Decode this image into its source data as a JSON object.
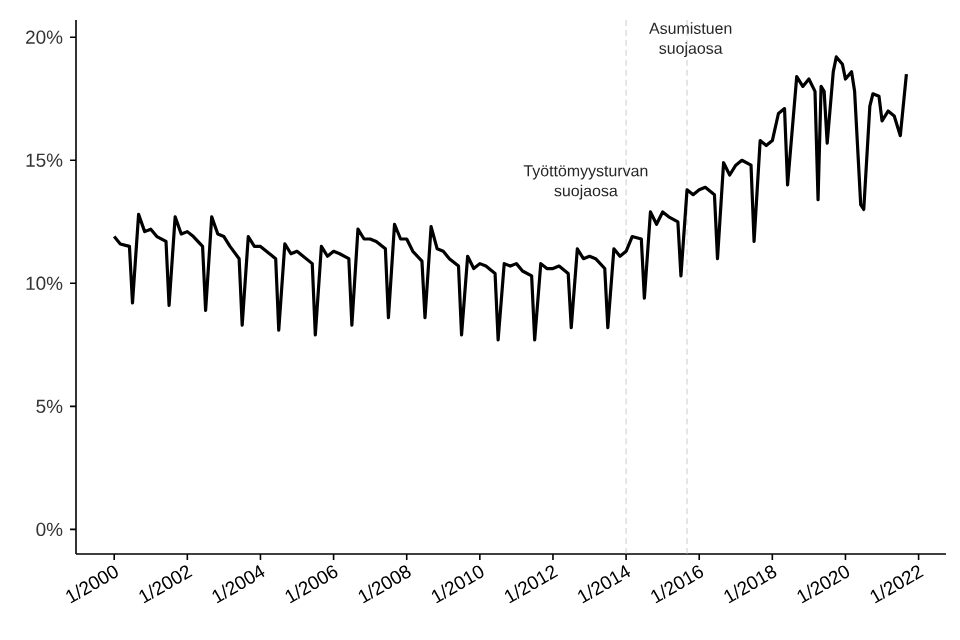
{
  "chart_data": {
    "type": "line",
    "x": [
      "2000-01",
      "2000-03",
      "2000-06",
      "2000-07",
      "2000-09",
      "2000-11",
      "2001-01",
      "2001-03",
      "2001-06",
      "2001-07",
      "2001-09",
      "2001-11",
      "2002-01",
      "2002-03",
      "2002-06",
      "2002-07",
      "2002-09",
      "2002-11",
      "2003-01",
      "2003-03",
      "2003-06",
      "2003-07",
      "2003-09",
      "2003-11",
      "2004-01",
      "2004-03",
      "2004-06",
      "2004-07",
      "2004-09",
      "2004-11",
      "2005-01",
      "2005-03",
      "2005-06",
      "2005-07",
      "2005-09",
      "2005-11",
      "2006-01",
      "2006-03",
      "2006-06",
      "2006-07",
      "2006-09",
      "2006-11",
      "2007-01",
      "2007-03",
      "2007-06",
      "2007-07",
      "2007-09",
      "2007-11",
      "2008-01",
      "2008-03",
      "2008-06",
      "2008-07",
      "2008-09",
      "2008-11",
      "2009-01",
      "2009-03",
      "2009-06",
      "2009-07",
      "2009-09",
      "2009-11",
      "2010-01",
      "2010-03",
      "2010-06",
      "2010-07",
      "2010-09",
      "2010-11",
      "2011-01",
      "2011-03",
      "2011-06",
      "2011-07",
      "2011-09",
      "2011-11",
      "2012-01",
      "2012-03",
      "2012-06",
      "2012-07",
      "2012-09",
      "2012-11",
      "2013-01",
      "2013-03",
      "2013-06",
      "2013-07",
      "2013-09",
      "2013-11",
      "2014-01",
      "2014-03",
      "2014-06",
      "2014-07",
      "2014-09",
      "2014-11",
      "2015-01",
      "2015-03",
      "2015-06",
      "2015-07",
      "2015-09",
      "2015-11",
      "2016-01",
      "2016-03",
      "2016-06",
      "2016-07",
      "2016-09",
      "2016-11",
      "2017-01",
      "2017-03",
      "2017-06",
      "2017-07",
      "2017-09",
      "2017-11",
      "2018-01",
      "2018-03",
      "2018-05",
      "2018-06",
      "2018-09",
      "2018-11",
      "2019-01",
      "2019-03",
      "2019-04",
      "2019-05",
      "2019-06",
      "2019-07",
      "2019-09",
      "2019-10",
      "2019-12",
      "2020-01",
      "2020-03",
      "2020-04",
      "2020-06",
      "2020-07",
      "2020-09",
      "2020-10",
      "2020-12",
      "2021-01",
      "2021-03",
      "2021-05",
      "2021-07",
      "2021-09"
    ],
    "series": [
      {
        "color": "#000000",
        "values": [
          11.9,
          11.6,
          11.5,
          9.2,
          12.8,
          12.1,
          12.2,
          11.9,
          11.7,
          9.1,
          12.7,
          12.0,
          12.1,
          11.9,
          11.5,
          8.9,
          12.7,
          12.0,
          11.9,
          11.5,
          11.0,
          8.3,
          11.9,
          11.5,
          11.5,
          11.3,
          11.0,
          8.1,
          11.6,
          11.2,
          11.3,
          11.1,
          10.8,
          7.9,
          11.5,
          11.1,
          11.3,
          11.2,
          11.0,
          8.3,
          12.2,
          11.8,
          11.8,
          11.7,
          11.4,
          8.6,
          12.4,
          11.8,
          11.8,
          11.3,
          10.9,
          8.6,
          12.3,
          11.4,
          11.3,
          11.0,
          10.7,
          7.9,
          11.1,
          10.6,
          10.8,
          10.7,
          10.4,
          7.7,
          10.8,
          10.7,
          10.8,
          10.5,
          10.3,
          7.7,
          10.8,
          10.6,
          10.6,
          10.7,
          10.4,
          8.2,
          11.4,
          11.0,
          11.1,
          11.0,
          10.6,
          8.2,
          11.4,
          11.1,
          11.3,
          11.9,
          11.8,
          9.4,
          12.9,
          12.4,
          12.9,
          12.7,
          12.5,
          10.3,
          13.8,
          13.6,
          13.8,
          13.9,
          13.6,
          11.0,
          14.9,
          14.4,
          14.8,
          15.0,
          14.8,
          11.7,
          15.8,
          15.6,
          15.8,
          16.9,
          17.1,
          14.0,
          18.4,
          18.0,
          18.3,
          17.8,
          13.4,
          18.0,
          17.8,
          15.7,
          18.6,
          19.2,
          18.9,
          18.3,
          18.6,
          17.8,
          13.2,
          13.0,
          17.2,
          17.7,
          17.6,
          16.6,
          17.0,
          16.8,
          16.0,
          18.5
        ]
      }
    ],
    "xlim": [
      "1998-12-15",
      "2022-10"
    ],
    "xticks": [
      {
        "value": "2000-01",
        "label": "1/2000"
      },
      {
        "value": "2002-01",
        "label": "1/2002"
      },
      {
        "value": "2004-01",
        "label": "1/2004"
      },
      {
        "value": "2006-01",
        "label": "1/2006"
      },
      {
        "value": "2008-01",
        "label": "1/2008"
      },
      {
        "value": "2010-01",
        "label": "1/2010"
      },
      {
        "value": "2012-01",
        "label": "1/2012"
      },
      {
        "value": "2014-01",
        "label": "1/2014"
      },
      {
        "value": "2016-01",
        "label": "1/2016"
      },
      {
        "value": "2018-01",
        "label": "1/2018"
      },
      {
        "value": "2020-01",
        "label": "1/2020"
      },
      {
        "value": "2022-01",
        "label": "1/2022"
      }
    ],
    "ylim": [
      -1,
      20.7
    ],
    "yticks": [
      {
        "value": 0,
        "label": "0%"
      },
      {
        "value": 5,
        "label": "5%"
      },
      {
        "value": 10,
        "label": "10%"
      },
      {
        "value": 15,
        "label": "15%"
      },
      {
        "value": 20,
        "label": "20%"
      }
    ],
    "ref_lines": [
      {
        "axis": "x",
        "value": "2014-01",
        "label": "Työttömyysturvan suojaosa",
        "color": "#bfbfbf",
        "line_style": "dashed"
      },
      {
        "axis": "x",
        "value": "2015-09",
        "label": "Asumistuen suojaosa",
        "color": "#bfbfbf",
        "line_style": "dashed"
      }
    ],
    "grid": false,
    "marker": "none",
    "line_style": "solid"
  }
}
